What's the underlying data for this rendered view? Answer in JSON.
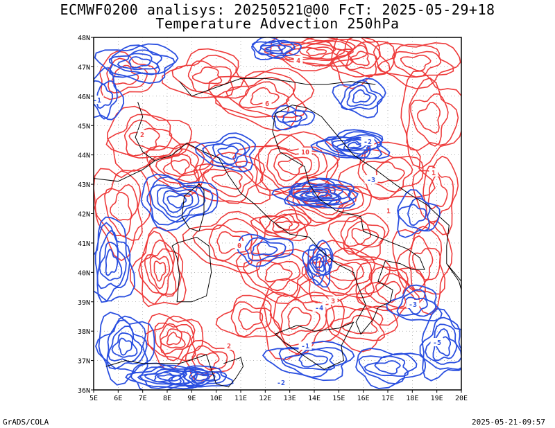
{
  "header": {
    "title_line1": "ECMWF0200 analisys: 20250521@00 FcT: 2025-05-29+18",
    "title_line2": "Temperature Advection 250hPa"
  },
  "footer": {
    "left": "GrADS/COLA",
    "right": "2025-05-21-09:57"
  },
  "axes": {
    "lon_labels": [
      "5E",
      "6E",
      "7E",
      "8E",
      "9E",
      "10E",
      "11E",
      "12E",
      "13E",
      "14E",
      "15E",
      "16E",
      "17E",
      "18E",
      "19E",
      "20E"
    ],
    "lat_labels": [
      "48N",
      "47N",
      "46N",
      "45N",
      "44N",
      "43N",
      "42N",
      "41N",
      "40N",
      "39N",
      "38N",
      "37N",
      "36N"
    ]
  },
  "colors": {
    "warm": "#ee3a3a",
    "cold": "#2a4fe0",
    "coast": "#000000",
    "grid": "#888888"
  },
  "contour_labels": {
    "warm": [
      "0",
      "2",
      "4",
      "10",
      "3",
      "1",
      "6",
      "1",
      "2"
    ],
    "cold": [
      "-1",
      "-2",
      "-3",
      "-4",
      "-5",
      "-1",
      "-2",
      "-3"
    ]
  }
}
